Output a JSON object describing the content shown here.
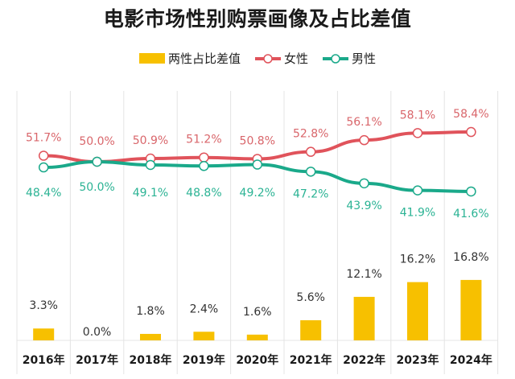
{
  "title": "电影市场性别购票画像及占比差值",
  "legend": [
    {
      "label": "两性占比差值",
      "color": "#f7c000",
      "type": "bar"
    },
    {
      "label": "女性",
      "color": "#e0535b",
      "type": "line"
    },
    {
      "label": "男性",
      "color": "#1aa98a",
      "type": "line"
    }
  ],
  "chart_data": {
    "type": "bar+line",
    "title": "电影市场性别购票画像及占比差值",
    "categories": [
      "2016年",
      "2017年",
      "2018年",
      "2019年",
      "2020年",
      "2021年",
      "2022年",
      "2023年",
      "2024年"
    ],
    "series": [
      {
        "name": "两性占比差值",
        "type": "bar",
        "color": "#f7c000",
        "values": [
          3.3,
          0.0,
          1.8,
          2.4,
          1.6,
          5.6,
          12.1,
          16.2,
          16.8
        ],
        "labels": [
          "3.3%",
          "0.0%",
          "1.8%",
          "2.4%",
          "1.6%",
          "5.6%",
          "12.1%",
          "16.2%",
          "16.8%"
        ]
      },
      {
        "name": "女性",
        "type": "line",
        "color": "#e0535b",
        "values": [
          51.7,
          50.0,
          50.9,
          51.2,
          50.8,
          52.8,
          56.1,
          58.1,
          58.4
        ],
        "labels": [
          "51.7%",
          "50.0%",
          "50.9%",
          "51.2%",
          "50.8%",
          "52.8%",
          "56.1%",
          "58.1%",
          "58.4%"
        ]
      },
      {
        "name": "男性",
        "type": "line",
        "color": "#1aa98a",
        "values": [
          48.4,
          50.0,
          49.1,
          48.8,
          49.2,
          47.2,
          43.9,
          41.9,
          41.6
        ],
        "labels": [
          "48.4%",
          "50.0%",
          "49.1%",
          "48.8%",
          "49.2%",
          "47.2%",
          "43.9%",
          "41.9%",
          "41.6%"
        ]
      }
    ],
    "xlabel": "",
    "ylabel": "",
    "grid": "vertical",
    "legend_position": "top"
  }
}
